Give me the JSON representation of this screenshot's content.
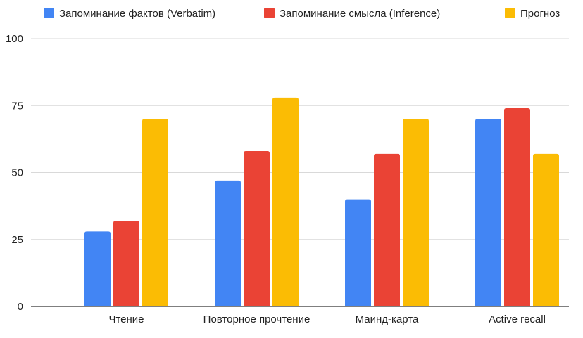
{
  "chart_data": {
    "type": "bar",
    "title": "",
    "xlabel": "",
    "ylabel": "",
    "categories": [
      "Чтение",
      "Повторное прочтение",
      "Маинд-карта",
      "Active recall"
    ],
    "series": [
      {
        "name": "Запоминание фактов (Verbatim)",
        "color": "#4285F4",
        "values": [
          28,
          47,
          40,
          70
        ]
      },
      {
        "name": "Запоминание смысла (Inference)",
        "color": "#EA4335",
        "values": [
          32,
          58,
          57,
          74
        ]
      },
      {
        "name": "Прогноз",
        "color": "#FBBC04",
        "values": [
          70,
          78,
          70,
          57
        ]
      }
    ],
    "ylim": [
      0,
      100
    ],
    "yticks": [
      "0",
      "25",
      "50",
      "75",
      "100"
    ],
    "grid": true,
    "legend_position": "top"
  }
}
